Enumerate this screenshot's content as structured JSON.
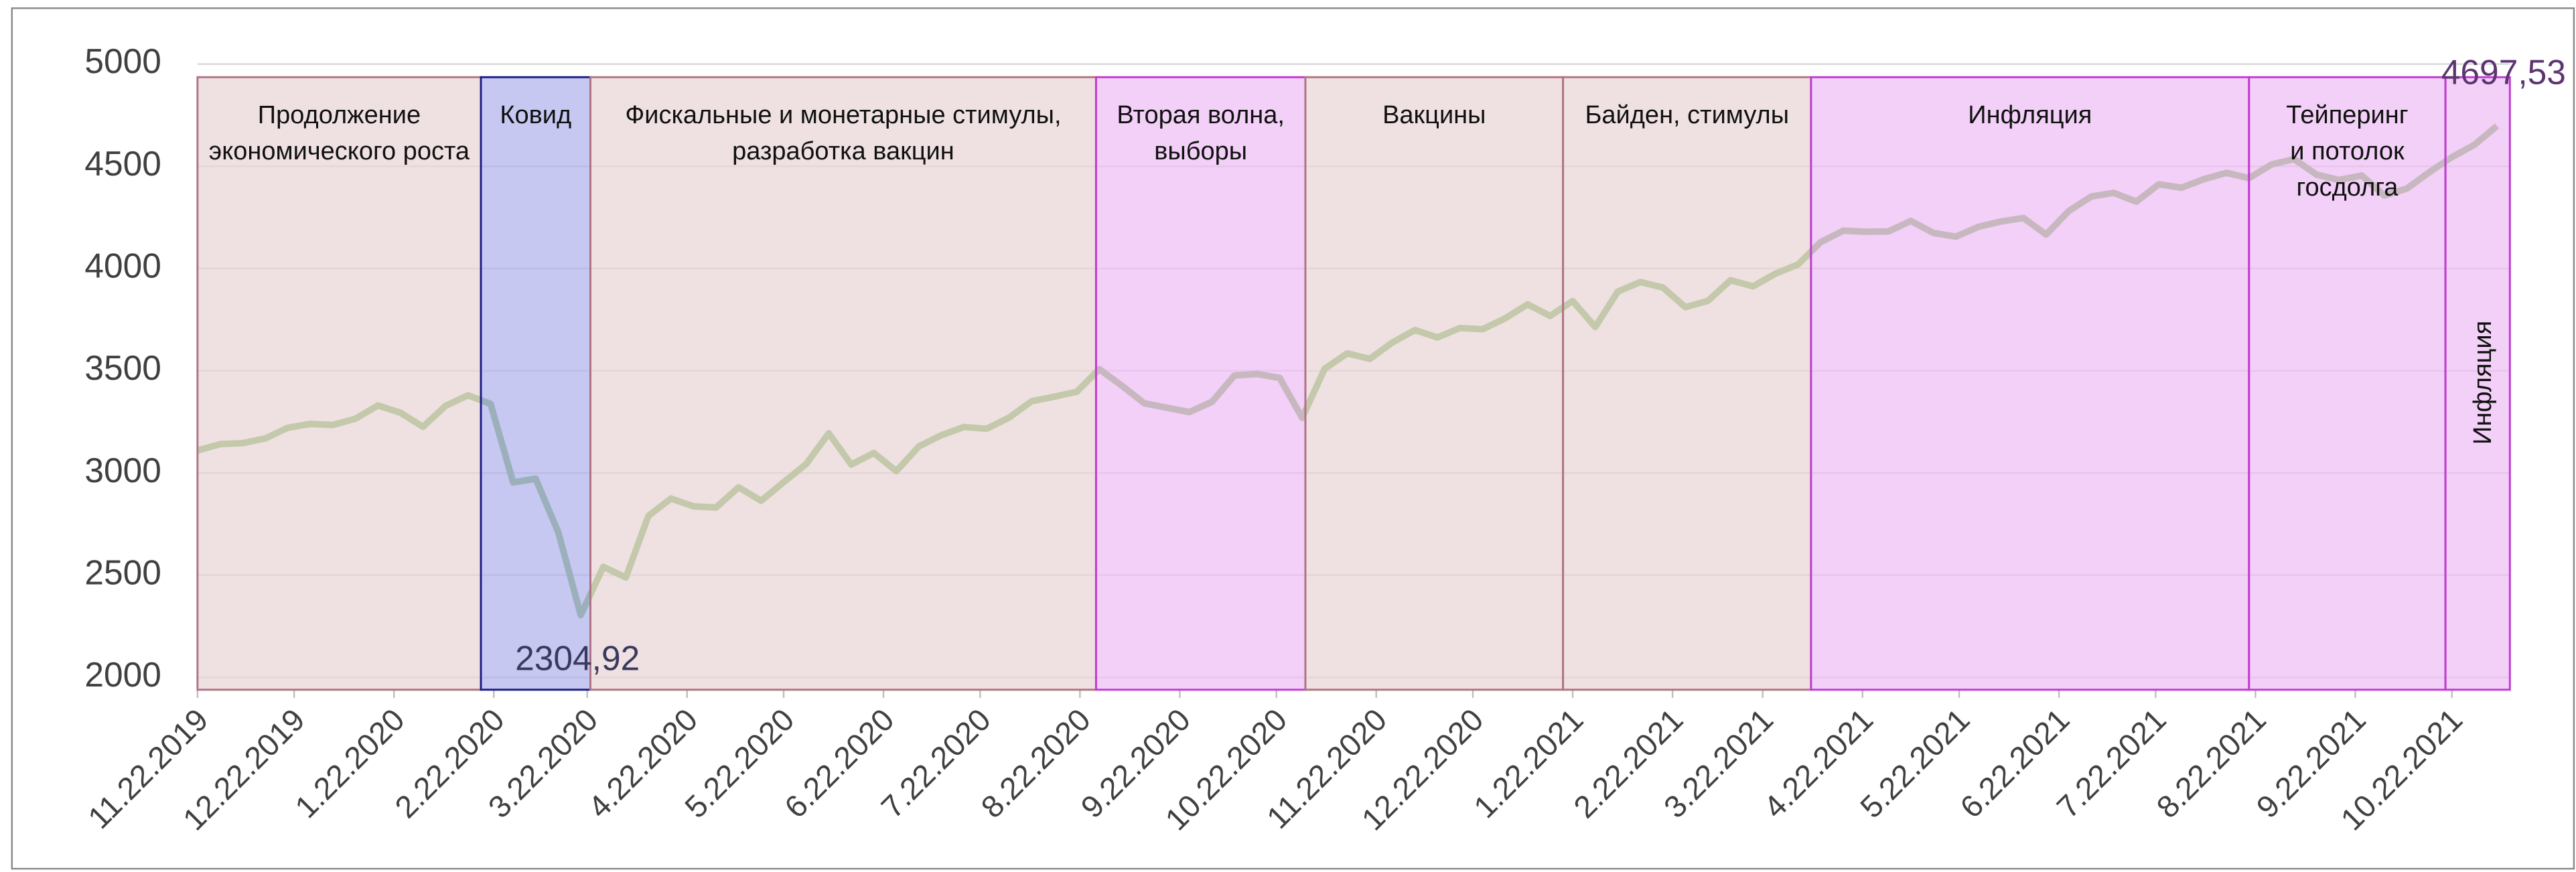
{
  "chart_data": {
    "type": "line",
    "x": [
      "11.22.2019",
      "11.29.2019",
      "12.6.2019",
      "12.13.2019",
      "12.20.2019",
      "12.27.2019",
      "1.3.2020",
      "1.10.2020",
      "1.17.2020",
      "1.24.2020",
      "1.31.2020",
      "2.7.2020",
      "2.14.2020",
      "2.21.2020",
      "2.28.2020",
      "3.6.2020",
      "3.13.2020",
      "3.20.2020",
      "3.27.2020",
      "4.3.2020",
      "4.10.2020",
      "4.17.2020",
      "4.24.2020",
      "5.1.2020",
      "5.8.2020",
      "5.15.2020",
      "5.22.2020",
      "5.29.2020",
      "6.5.2020",
      "6.12.2020",
      "6.19.2020",
      "6.26.2020",
      "7.3.2020",
      "7.10.2020",
      "7.17.2020",
      "7.24.2020",
      "7.31.2020",
      "8.7.2020",
      "8.14.2020",
      "8.21.2020",
      "8.28.2020",
      "9.4.2020",
      "9.11.2020",
      "9.18.2020",
      "9.25.2020",
      "10.2.2020",
      "10.9.2020",
      "10.16.2020",
      "10.23.2020",
      "10.30.2020",
      "11.6.2020",
      "11.13.2020",
      "11.20.2020",
      "11.27.2020",
      "12.4.2020",
      "12.11.2020",
      "12.18.2020",
      "12.25.2020",
      "1.1.2021",
      "1.8.2021",
      "1.15.2021",
      "1.22.2021",
      "1.29.2021",
      "2.5.2021",
      "2.12.2021",
      "2.19.2021",
      "2.26.2021",
      "3.5.2021",
      "3.12.2021",
      "3.19.2021",
      "3.26.2021",
      "4.2.2021",
      "4.9.2021",
      "4.16.2021",
      "4.23.2021",
      "4.30.2021",
      "5.7.2021",
      "5.14.2021",
      "5.21.2021",
      "5.28.2021",
      "6.4.2021",
      "6.11.2021",
      "6.18.2021",
      "6.25.2021",
      "7.2.2021",
      "7.9.2021",
      "7.16.2021",
      "7.23.2021",
      "7.30.2021",
      "8.6.2021",
      "8.13.2021",
      "8.20.2021",
      "8.27.2021",
      "9.3.2021",
      "9.10.2021",
      "9.17.2021",
      "9.24.2021",
      "10.1.2021",
      "10.8.2021",
      "10.15.2021",
      "10.22.2021",
      "10.29.2021",
      "11.5.2021"
    ],
    "series": [
      {
        "color": "#70ad47",
        "values": [
          3110,
          3141,
          3146,
          3169,
          3221,
          3240,
          3235,
          3265,
          3330,
          3295,
          3226,
          3328,
          3380,
          3338,
          2954,
          2972,
          2711,
          2304.92,
          2541,
          2489,
          2790,
          2875,
          2837,
          2831,
          2930,
          2864,
          2955,
          3044,
          3194,
          3041,
          3098,
          3009,
          3130,
          3185,
          3225,
          3216,
          3271,
          3351,
          3373,
          3397,
          3508,
          3427,
          3341,
          3319,
          3298,
          3348,
          3477,
          3484,
          3465,
          3270,
          3510,
          3585,
          3558,
          3638,
          3699,
          3663,
          3709,
          3703,
          3756,
          3825,
          3768,
          3841,
          3714,
          3887,
          3934,
          3907,
          3811,
          3842,
          3943,
          3913,
          3975,
          4020,
          4129,
          4185,
          4180,
          4181,
          4233,
          4174,
          4156,
          4204,
          4230,
          4247,
          4166,
          4281,
          4352,
          4370,
          4327,
          4412,
          4395,
          4437,
          4468,
          4442,
          4509,
          4535,
          4459,
          4433,
          4455,
          4357,
          4391,
          4471,
          4545,
          4605,
          4697.53
        ],
        "value_labels": [
          null,
          null,
          null,
          null,
          null,
          null,
          null,
          null,
          null,
          null,
          null,
          null,
          null,
          null,
          null,
          null,
          null,
          "2304,92",
          null,
          null,
          null,
          null,
          null,
          null,
          null,
          null,
          null,
          null,
          null,
          null,
          null,
          null,
          null,
          null,
          null,
          null,
          null,
          null,
          null,
          null,
          null,
          null,
          null,
          null,
          null,
          null,
          null,
          null,
          null,
          null,
          null,
          null,
          null,
          null,
          null,
          null,
          null,
          null,
          null,
          null,
          null,
          null,
          null,
          null,
          null,
          null,
          null,
          null,
          null,
          null,
          null,
          null,
          null,
          null,
          null,
          null,
          null,
          null,
          null,
          null,
          null,
          null,
          null,
          null,
          null,
          null,
          null,
          null,
          null,
          null,
          null,
          null,
          null,
          null,
          null,
          null,
          null,
          null,
          null,
          null,
          null,
          null,
          "4697,53"
        ]
      }
    ],
    "xlim": [
      "11.22.2019",
      "11.9.2021"
    ],
    "xticks": [
      "11.22.2019",
      "12.22.2019",
      "1.22.2020",
      "2.22.2020",
      "3.22.2020",
      "4.22.2020",
      "5.22.2020",
      "6.22.2020",
      "7.22.2020",
      "8.22.2020",
      "9.22.2020",
      "10.22.2020",
      "11.22.2020",
      "12.22.2020",
      "1.22.2021",
      "2.22.2021",
      "3.22.2021",
      "4.22.2021",
      "5.22.2021",
      "6.22.2021",
      "7.22.2021",
      "8.22.2021",
      "9.22.2021",
      "10.22.2021"
    ],
    "ylim": [
      1940,
      5000
    ],
    "yticks": [
      2000,
      2500,
      3000,
      3500,
      4000,
      4500,
      5000
    ],
    "grid": true,
    "regions": [
      {
        "from": "11.22.2019",
        "to": "2.18.2020",
        "lines": [
          "Продолжение",
          "экономического роста"
        ],
        "color": "#e8d4d6",
        "border": "#b07483"
      },
      {
        "from": "2.18.2020",
        "to": "3.23.2020",
        "lines": [
          "Ковид"
        ],
        "color": "#aeb0ec",
        "border": "#1c1c86"
      },
      {
        "from": "3.23.2020",
        "to": "8.27.2020",
        "lines": [
          "Фискальные и монетарные стимулы,",
          "разработка вакцин"
        ],
        "color": "#e8d4d6",
        "border": "#b07483"
      },
      {
        "from": "8.27.2020",
        "to": "10.31.2020",
        "lines": [
          "Вторая волна,",
          "выборы"
        ],
        "color": "#ecbcf4",
        "border": "#c23ad2"
      },
      {
        "from": "10.31.2020",
        "to": "1.19.2021",
        "lines": [
          "Вакцины"
        ],
        "color": "#e8d4d6",
        "border": "#b07483"
      },
      {
        "from": "1.19.2021",
        "to": "4.6.2021",
        "lines": [
          "Байден, стимулы"
        ],
        "color": "#e8d4d6",
        "border": "#b07483"
      },
      {
        "from": "4.6.2021",
        "to": "8.20.2021",
        "lines": [
          "Инфляция"
        ],
        "color": "#ecbcf4",
        "border": "#c23ad2"
      },
      {
        "from": "8.20.2021",
        "to": "10.20.2021",
        "lines": [
          "Тейперинг",
          "и потолок",
          "госдолга"
        ],
        "color": "#ecbcf4",
        "border": "#c23ad2"
      },
      {
        "from": "10.20.2021",
        "to": "11.9.2021",
        "lines": [
          "Инфляция"
        ],
        "color": "#ecbcf4",
        "border": "#c23ad2",
        "vertical": true
      }
    ]
  }
}
